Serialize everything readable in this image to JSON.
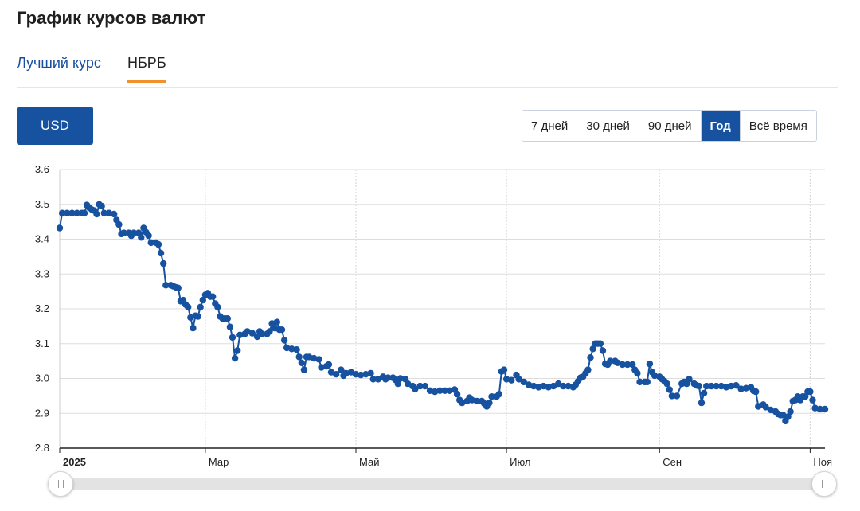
{
  "page": {
    "title": "График курсов валют"
  },
  "tabs": [
    {
      "label": "Лучший курс"
    },
    {
      "label": "НБРБ",
      "active": true
    }
  ],
  "currency": {
    "label": "USD"
  },
  "periods": [
    {
      "label": "7 дней"
    },
    {
      "label": "30 дней"
    },
    {
      "label": "90 дней"
    },
    {
      "label": "Год",
      "active": true
    },
    {
      "label": "Всё время"
    }
  ],
  "colors": {
    "accent": "#1652a0",
    "tab_underline": "#f0912c",
    "series": "#1652a0"
  },
  "icons": {
    "slider_handle": "grip-icon"
  },
  "chart_data": {
    "type": "line",
    "title": "",
    "xlabel": "",
    "ylabel": "",
    "ylim": [
      2.8,
      3.6
    ],
    "yticks": [
      "3.6",
      "3.5",
      "3.4",
      "3.3",
      "3.2",
      "3.1",
      "3.0",
      "2.9",
      "2.8"
    ],
    "xticks": [
      {
        "label": "2025",
        "day": 0,
        "bold": true
      },
      {
        "label": "Мар",
        "day": 59
      },
      {
        "label": "Май",
        "day": 120
      },
      {
        "label": "Июл",
        "day": 181
      },
      {
        "label": "Сен",
        "day": 243
      },
      {
        "label": "Ноя",
        "day": 304
      }
    ],
    "grid": true,
    "x_unit": "days from 2025-01-01",
    "series": [
      {
        "points": [
          [
            0,
            3.432
          ],
          [
            1,
            3.475
          ],
          [
            3,
            3.475
          ],
          [
            5,
            3.475
          ],
          [
            7,
            3.475
          ],
          [
            9,
            3.475
          ],
          [
            10,
            3.475
          ],
          [
            11,
            3.498
          ],
          [
            12,
            3.49
          ],
          [
            13,
            3.485
          ],
          [
            14,
            3.482
          ],
          [
            15,
            3.472
          ],
          [
            16,
            3.5
          ],
          [
            17,
            3.495
          ],
          [
            18,
            3.475
          ],
          [
            20,
            3.475
          ],
          [
            22,
            3.472
          ],
          [
            23,
            3.455
          ],
          [
            24,
            3.442
          ],
          [
            25,
            3.415
          ],
          [
            26,
            3.418
          ],
          [
            28,
            3.418
          ],
          [
            29,
            3.41
          ],
          [
            30,
            3.418
          ],
          [
            32,
            3.418
          ],
          [
            33,
            3.405
          ],
          [
            34,
            3.432
          ],
          [
            35,
            3.42
          ],
          [
            36,
            3.41
          ],
          [
            37,
            3.39
          ],
          [
            39,
            3.39
          ],
          [
            40,
            3.385
          ],
          [
            41,
            3.36
          ],
          [
            42,
            3.33
          ],
          [
            43,
            3.268
          ],
          [
            45,
            3.268
          ],
          [
            46,
            3.265
          ],
          [
            47,
            3.262
          ],
          [
            48,
            3.26
          ],
          [
            49,
            3.222
          ],
          [
            50,
            3.225
          ],
          [
            51,
            3.212
          ],
          [
            52,
            3.205
          ],
          [
            53,
            3.175
          ],
          [
            54,
            3.145
          ],
          [
            55,
            3.18
          ],
          [
            56,
            3.178
          ],
          [
            57,
            3.205
          ],
          [
            58,
            3.225
          ],
          [
            59,
            3.24
          ],
          [
            60,
            3.245
          ],
          [
            61,
            3.235
          ],
          [
            62,
            3.235
          ],
          [
            63,
            3.215
          ],
          [
            64,
            3.205
          ],
          [
            65,
            3.178
          ],
          [
            66,
            3.172
          ],
          [
            67,
            3.172
          ],
          [
            68,
            3.172
          ],
          [
            69,
            3.148
          ],
          [
            70,
            3.118
          ],
          [
            71,
            3.058
          ],
          [
            72,
            3.08
          ],
          [
            73,
            3.125
          ],
          [
            75,
            3.128
          ],
          [
            76,
            3.135
          ],
          [
            78,
            3.13
          ],
          [
            80,
            3.12
          ],
          [
            81,
            3.135
          ],
          [
            82,
            3.128
          ],
          [
            84,
            3.128
          ],
          [
            85,
            3.135
          ],
          [
            86,
            3.158
          ],
          [
            87,
            3.145
          ],
          [
            88,
            3.162
          ],
          [
            89,
            3.14
          ],
          [
            90,
            3.14
          ],
          [
            91,
            3.11
          ],
          [
            92,
            3.088
          ],
          [
            94,
            3.085
          ],
          [
            96,
            3.083
          ],
          [
            97,
            3.062
          ],
          [
            98,
            3.045
          ],
          [
            99,
            3.025
          ],
          [
            100,
            3.062
          ],
          [
            101,
            3.062
          ],
          [
            103,
            3.058
          ],
          [
            105,
            3.055
          ],
          [
            106,
            3.032
          ],
          [
            108,
            3.035
          ],
          [
            109,
            3.04
          ],
          [
            110,
            3.018
          ],
          [
            112,
            3.012
          ],
          [
            114,
            3.025
          ],
          [
            115,
            3.008
          ],
          [
            116,
            3.015
          ],
          [
            118,
            3.018
          ],
          [
            120,
            3.012
          ],
          [
            122,
            3.01
          ],
          [
            124,
            3.012
          ],
          [
            126,
            3.015
          ],
          [
            127,
            2.998
          ],
          [
            129,
            2.998
          ],
          [
            131,
            3.005
          ],
          [
            132,
            2.998
          ],
          [
            133,
            3.002
          ],
          [
            135,
            3.002
          ],
          [
            136,
            2.996
          ],
          [
            137,
            2.985
          ],
          [
            138,
            3.0
          ],
          [
            140,
            2.998
          ],
          [
            141,
            2.985
          ],
          [
            143,
            2.978
          ],
          [
            144,
            2.97
          ],
          [
            146,
            2.978
          ],
          [
            148,
            2.978
          ],
          [
            150,
            2.965
          ],
          [
            152,
            2.962
          ],
          [
            154,
            2.965
          ],
          [
            156,
            2.965
          ],
          [
            158,
            2.965
          ],
          [
            160,
            2.968
          ],
          [
            161,
            2.955
          ],
          [
            162,
            2.938
          ],
          [
            163,
            2.93
          ],
          [
            165,
            2.935
          ],
          [
            166,
            2.945
          ],
          [
            167,
            2.938
          ],
          [
            169,
            2.935
          ],
          [
            171,
            2.935
          ],
          [
            172,
            2.928
          ],
          [
            173,
            2.92
          ],
          [
            174,
            2.93
          ],
          [
            175,
            2.948
          ],
          [
            177,
            2.948
          ],
          [
            178,
            2.955
          ],
          [
            179,
            3.02
          ],
          [
            180,
            3.025
          ],
          [
            181,
            2.998
          ],
          [
            183,
            2.995
          ],
          [
            185,
            3.01
          ],
          [
            186,
            2.998
          ],
          [
            188,
            2.99
          ],
          [
            190,
            2.982
          ],
          [
            192,
            2.978
          ],
          [
            194,
            2.975
          ],
          [
            196,
            2.978
          ],
          [
            198,
            2.975
          ],
          [
            200,
            2.978
          ],
          [
            202,
            2.985
          ],
          [
            204,
            2.978
          ],
          [
            206,
            2.978
          ],
          [
            208,
            2.975
          ],
          [
            209,
            2.982
          ],
          [
            210,
            2.992
          ],
          [
            211,
            3.002
          ],
          [
            212,
            3.005
          ],
          [
            213,
            3.015
          ],
          [
            214,
            3.025
          ],
          [
            215,
            3.06
          ],
          [
            216,
            3.085
          ],
          [
            217,
            3.1
          ],
          [
            218,
            3.1
          ],
          [
            219,
            3.1
          ],
          [
            220,
            3.08
          ],
          [
            221,
            3.042
          ],
          [
            222,
            3.04
          ],
          [
            223,
            3.05
          ],
          [
            225,
            3.05
          ],
          [
            226,
            3.045
          ],
          [
            228,
            3.04
          ],
          [
            230,
            3.04
          ],
          [
            232,
            3.04
          ],
          [
            233,
            3.025
          ],
          [
            234,
            3.015
          ],
          [
            235,
            2.99
          ],
          [
            237,
            2.99
          ],
          [
            238,
            2.99
          ],
          [
            239,
            3.042
          ],
          [
            240,
            3.018
          ],
          [
            241,
            3.008
          ],
          [
            243,
            3.005
          ],
          [
            244,
            2.998
          ],
          [
            245,
            2.992
          ],
          [
            246,
            2.985
          ],
          [
            247,
            2.968
          ],
          [
            248,
            2.95
          ],
          [
            250,
            2.95
          ],
          [
            252,
            2.985
          ],
          [
            253,
            2.99
          ],
          [
            254,
            2.985
          ],
          [
            255,
            2.998
          ],
          [
            257,
            2.985
          ],
          [
            258,
            2.98
          ],
          [
            259,
            2.978
          ],
          [
            260,
            2.93
          ],
          [
            261,
            2.958
          ],
          [
            262,
            2.978
          ],
          [
            264,
            2.978
          ],
          [
            266,
            2.978
          ],
          [
            268,
            2.978
          ],
          [
            270,
            2.975
          ],
          [
            272,
            2.978
          ],
          [
            274,
            2.98
          ],
          [
            276,
            2.97
          ],
          [
            278,
            2.972
          ],
          [
            280,
            2.975
          ],
          [
            281,
            2.965
          ],
          [
            282,
            2.962
          ],
          [
            283,
            2.92
          ],
          [
            285,
            2.925
          ],
          [
            286,
            2.918
          ],
          [
            288,
            2.91
          ],
          [
            290,
            2.905
          ],
          [
            291,
            2.898
          ],
          [
            292,
            2.895
          ],
          [
            293,
            2.895
          ],
          [
            294,
            2.878
          ],
          [
            295,
            2.89
          ],
          [
            296,
            2.905
          ],
          [
            297,
            2.935
          ],
          [
            298,
            2.938
          ],
          [
            299,
            2.948
          ],
          [
            300,
            2.938
          ],
          [
            301,
            2.948
          ],
          [
            302,
            2.948
          ],
          [
            303,
            2.962
          ],
          [
            304,
            2.962
          ],
          [
            305,
            2.938
          ],
          [
            306,
            2.915
          ],
          [
            308,
            2.912
          ],
          [
            310,
            2.912
          ]
        ]
      }
    ]
  }
}
